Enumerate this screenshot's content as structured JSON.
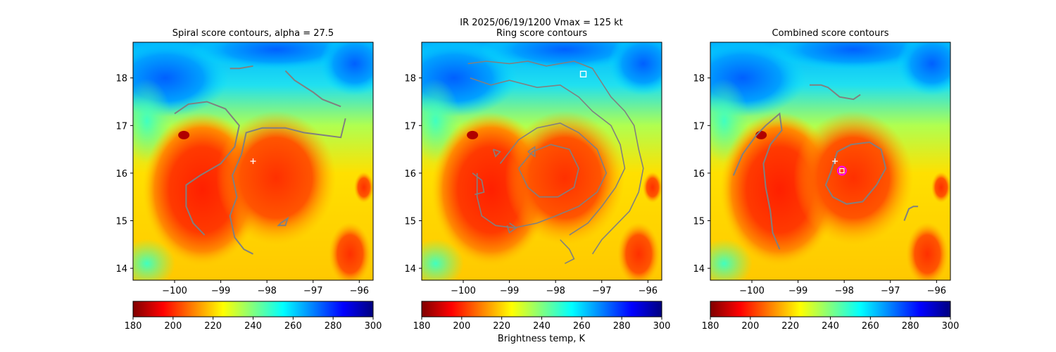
{
  "figure": {
    "suptitle_line1": "IR  2025/06/19/1200    Vmax = 125 kt",
    "colorbar_label": "Brightness temp, K"
  },
  "colormap": {
    "name": "jet_r",
    "stops": [
      "#7f0000",
      "#ff0000",
      "#ff8000",
      "#ffff00",
      "#80ff80",
      "#00ffff",
      "#0080ff",
      "#0000ff",
      "#00007f"
    ]
  },
  "chart_data": [
    {
      "type": "heatmap",
      "title": "Spiral score contours, alpha = 27.5",
      "xlim": [
        -100.9,
        -95.7
      ],
      "ylim": [
        13.75,
        18.75
      ],
      "xticks": [
        -100,
        -99,
        -98,
        -97,
        -96
      ],
      "yticks": [
        14,
        15,
        16,
        17,
        18
      ],
      "colorbar": {
        "range": [
          180,
          300
        ],
        "ticks": [
          180,
          200,
          220,
          240,
          260,
          280,
          300
        ]
      },
      "center_marker": {
        "symbol": "+",
        "lon": -98.3,
        "lat": 16.25
      },
      "contour_color": "#808080"
    },
    {
      "type": "heatmap",
      "title": "Ring score contours",
      "xlim": [
        -100.9,
        -95.7
      ],
      "ylim": [
        13.75,
        18.75
      ],
      "xticks": [
        -100,
        -99,
        -98,
        -97,
        -96
      ],
      "yticks": [
        14,
        15,
        16,
        17,
        18
      ],
      "colorbar": {
        "range": [
          180,
          300
        ],
        "ticks": [
          180,
          200,
          220,
          240,
          260,
          280,
          300
        ]
      },
      "ring_marker": {
        "symbol": "square",
        "lon": -97.4,
        "lat": 18.08
      },
      "contour_color": "#808080"
    },
    {
      "type": "heatmap",
      "title": "Combined score contours",
      "xlim": [
        -100.9,
        -95.7
      ],
      "ylim": [
        13.75,
        18.75
      ],
      "xticks": [
        -100,
        -99,
        -98,
        -97,
        -96
      ],
      "yticks": [
        14,
        15,
        16,
        17,
        18
      ],
      "colorbar": {
        "range": [
          180,
          300
        ],
        "ticks": [
          180,
          200,
          220,
          240,
          260,
          280,
          300
        ]
      },
      "center_marker": {
        "symbol": "+",
        "lon": -98.2,
        "lat": 16.25
      },
      "combined_marker": {
        "symbol": "circle+square",
        "lon": -98.05,
        "lat": 16.05
      },
      "contour_color": "#808080"
    }
  ]
}
